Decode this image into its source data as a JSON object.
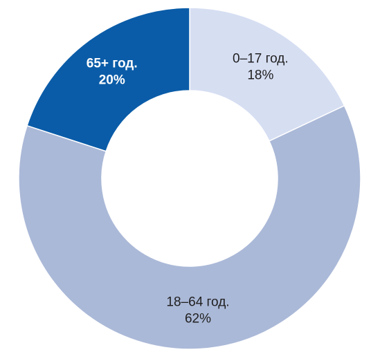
{
  "chart_data": {
    "type": "pie",
    "donut": true,
    "title": "",
    "slices": [
      {
        "label": "0–17 год.",
        "value": 18,
        "value_label": "18%",
        "color": "#D6DEF2",
        "text_color": "#1F1F1F",
        "bold": false
      },
      {
        "label": "18–64 год.",
        "value": 62,
        "value_label": "62%",
        "color": "#ABB9D8",
        "text_color": "#1F1F1F",
        "bold": false
      },
      {
        "label": "65+ год.",
        "value": 20,
        "value_label": "20%",
        "color": "#0A5CA8",
        "text_color": "#FFFFFF",
        "bold": true
      }
    ],
    "start_angle_deg": 0,
    "direction": "clockwise",
    "legend": "none"
  }
}
